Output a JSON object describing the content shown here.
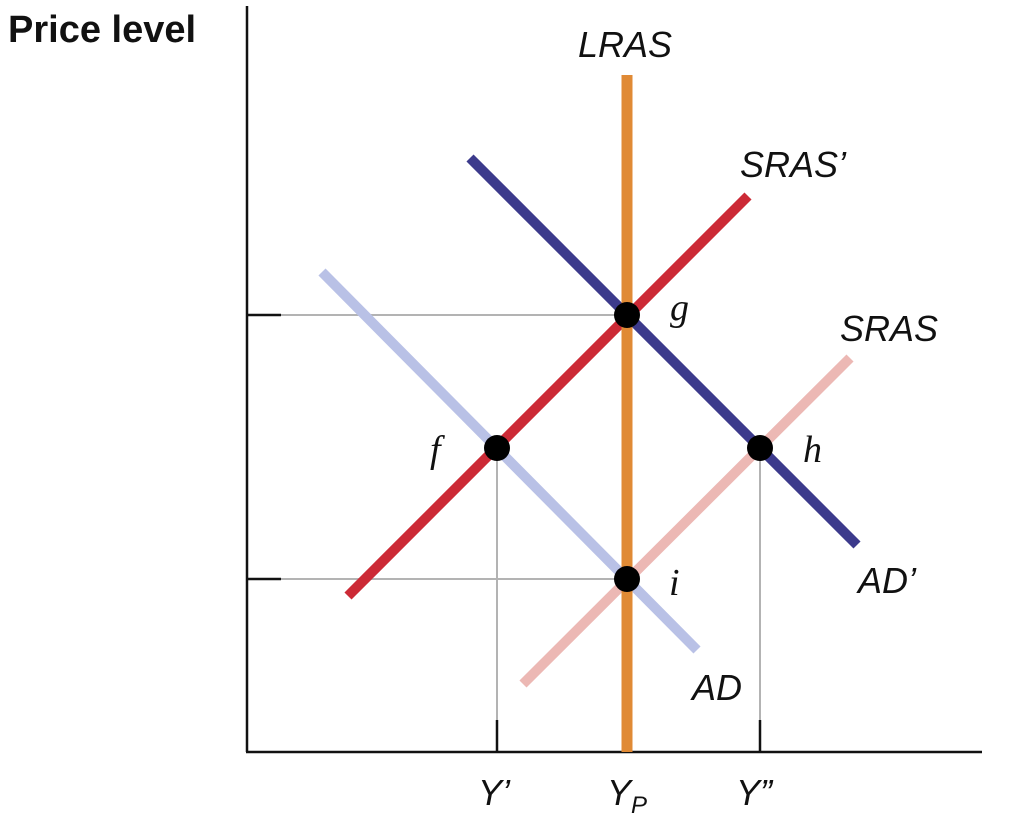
{
  "axis": {
    "y_label": "Price level"
  },
  "curves": {
    "lras": {
      "label": "LRAS",
      "color": "#e08a35"
    },
    "sras_prime": {
      "label": "SRAS’",
      "color": "#cc2a36"
    },
    "sras": {
      "label": "SRAS",
      "color": "#ecb8b4"
    },
    "ad_prime": {
      "label": "AD’",
      "color": "#3c3a8c"
    },
    "ad": {
      "label": "AD",
      "color": "#b9c1e6"
    }
  },
  "points": {
    "f": {
      "label": "f"
    },
    "g": {
      "label": "g"
    },
    "h": {
      "label": "h"
    },
    "i": {
      "label": "i"
    }
  },
  "x_ticks": {
    "y_prime": {
      "label": "Y’"
    },
    "y_p": {
      "label": "Y",
      "sub": "P"
    },
    "y_double_prime": {
      "label": "Y”"
    }
  },
  "colors": {
    "axis": "#111111",
    "guide": "#b3b3b3",
    "point": "#000000"
  }
}
